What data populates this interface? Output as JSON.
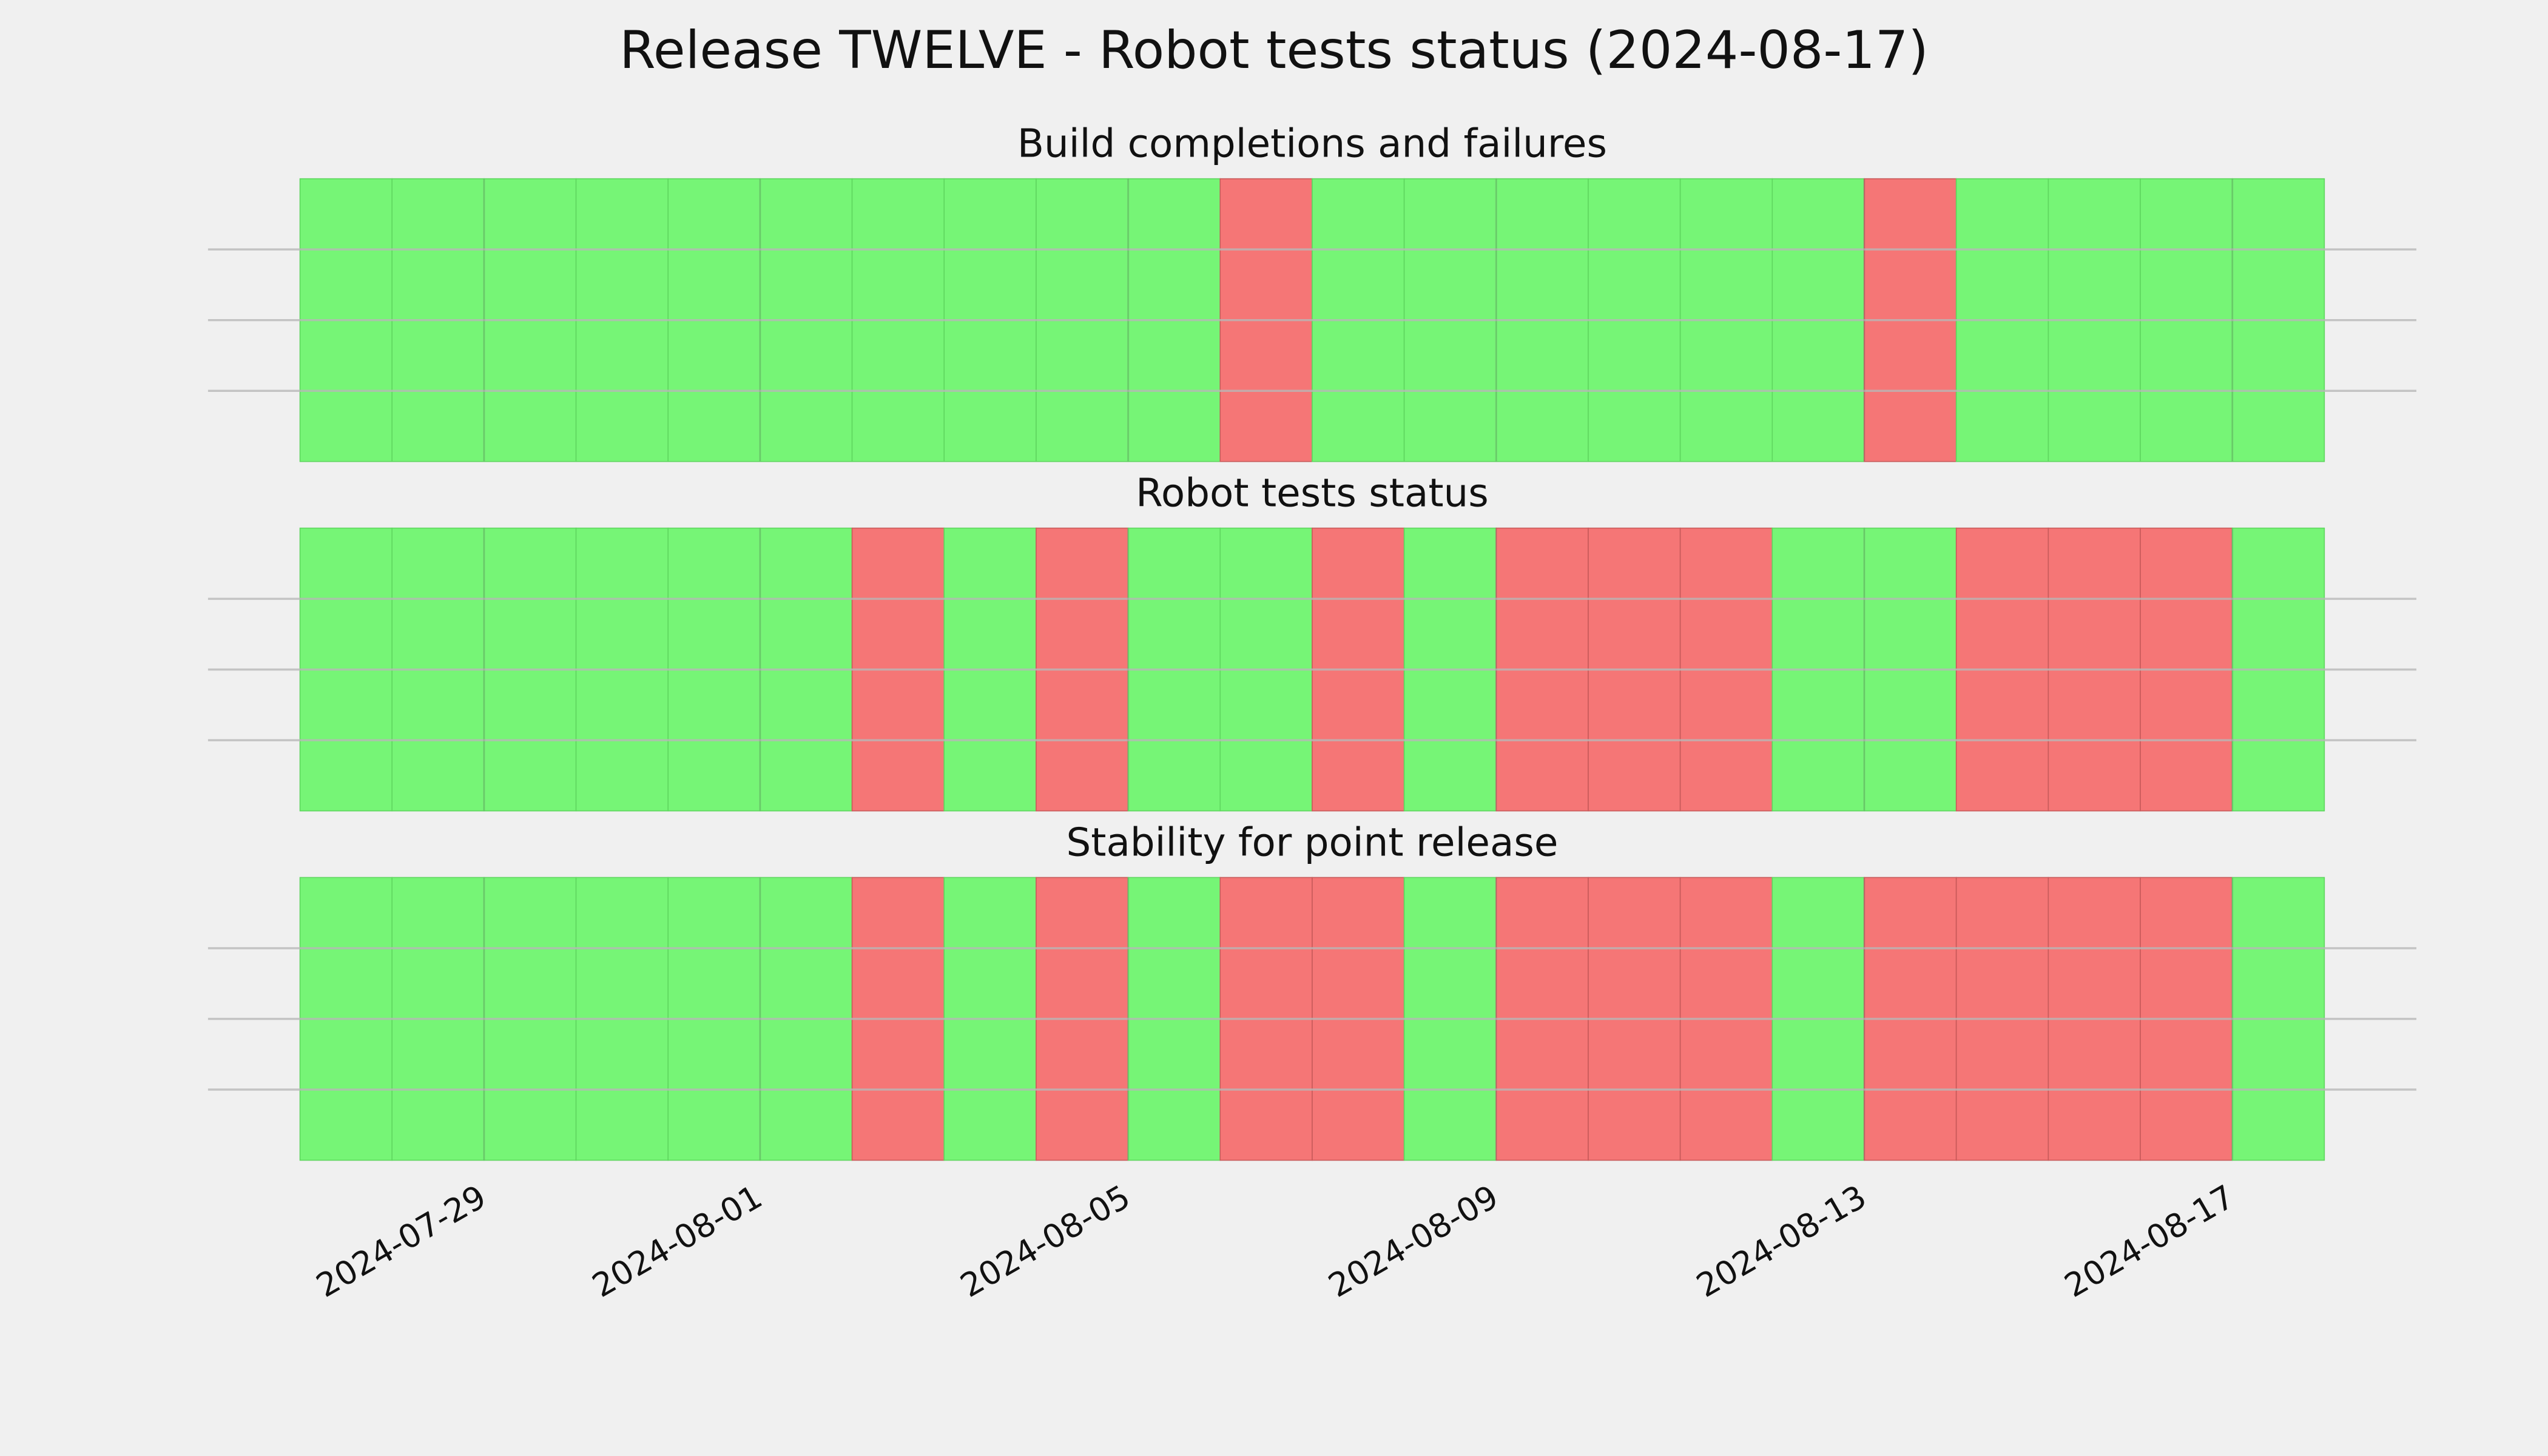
{
  "title": "Release TWELVE - Robot tests status (2024-08-17)",
  "chart_data": [
    {
      "type": "timeline",
      "title": "Build completions and failures",
      "x": [
        "2024-07-27",
        "2024-07-28",
        "2024-07-29",
        "2024-07-30",
        "2024-07-31",
        "2024-08-01",
        "2024-08-02",
        "2024-08-03",
        "2024-08-04",
        "2024-08-05",
        "2024-08-06",
        "2024-08-07",
        "2024-08-08",
        "2024-08-09",
        "2024-08-10",
        "2024-08-11",
        "2024-08-12",
        "2024-08-13",
        "2024-08-14",
        "2024-08-15",
        "2024-08-16",
        "2024-08-17"
      ],
      "values": [
        1,
        1,
        1,
        1,
        1,
        1,
        1,
        1,
        1,
        1,
        0,
        1,
        1,
        1,
        1,
        1,
        1,
        0,
        1,
        1,
        1,
        1
      ],
      "pass_color": "#76f576",
      "fail_color": "#f57676",
      "xlim": [
        "2024-07-26",
        "2024-08-19"
      ],
      "xticks": [
        "2024-07-29",
        "2024-08-01",
        "2024-08-05",
        "2024-08-09",
        "2024-08-13",
        "2024-08-17"
      ],
      "ylim": [
        0,
        1
      ],
      "yticks": [
        0.25,
        0.5,
        0.75
      ],
      "grid": true
    },
    {
      "type": "timeline",
      "title": "Robot tests status",
      "x": [
        "2024-07-27",
        "2024-07-28",
        "2024-07-29",
        "2024-07-30",
        "2024-07-31",
        "2024-08-01",
        "2024-08-02",
        "2024-08-03",
        "2024-08-04",
        "2024-08-05",
        "2024-08-06",
        "2024-08-07",
        "2024-08-08",
        "2024-08-09",
        "2024-08-10",
        "2024-08-11",
        "2024-08-12",
        "2024-08-13",
        "2024-08-14",
        "2024-08-15",
        "2024-08-16",
        "2024-08-17"
      ],
      "values": [
        1,
        1,
        1,
        1,
        1,
        1,
        0,
        1,
        0,
        1,
        1,
        0,
        1,
        0,
        0,
        0,
        1,
        1,
        0,
        0,
        0,
        1
      ],
      "pass_color": "#76f576",
      "fail_color": "#f57676",
      "xlim": [
        "2024-07-26",
        "2024-08-19"
      ],
      "xticks": [
        "2024-07-29",
        "2024-08-01",
        "2024-08-05",
        "2024-08-09",
        "2024-08-13",
        "2024-08-17"
      ],
      "ylim": [
        0,
        1
      ],
      "yticks": [
        0.25,
        0.5,
        0.75
      ],
      "grid": true
    },
    {
      "type": "timeline",
      "title": "Stability for point release",
      "x": [
        "2024-07-27",
        "2024-07-28",
        "2024-07-29",
        "2024-07-30",
        "2024-07-31",
        "2024-08-01",
        "2024-08-02",
        "2024-08-03",
        "2024-08-04",
        "2024-08-05",
        "2024-08-06",
        "2024-08-07",
        "2024-08-08",
        "2024-08-09",
        "2024-08-10",
        "2024-08-11",
        "2024-08-12",
        "2024-08-13",
        "2024-08-14",
        "2024-08-15",
        "2024-08-16",
        "2024-08-17"
      ],
      "values": [
        1,
        1,
        1,
        1,
        1,
        1,
        0,
        1,
        0,
        1,
        0,
        0,
        1,
        0,
        0,
        0,
        1,
        0,
        0,
        0,
        0,
        1
      ],
      "pass_color": "#76f576",
      "fail_color": "#f57676",
      "xlim": [
        "2024-07-26",
        "2024-08-19"
      ],
      "xticks": [
        "2024-07-29",
        "2024-08-01",
        "2024-08-05",
        "2024-08-09",
        "2024-08-13",
        "2024-08-17"
      ],
      "ylim": [
        0,
        1
      ],
      "yticks": [
        0.25,
        0.5,
        0.75
      ],
      "grid": true
    }
  ]
}
